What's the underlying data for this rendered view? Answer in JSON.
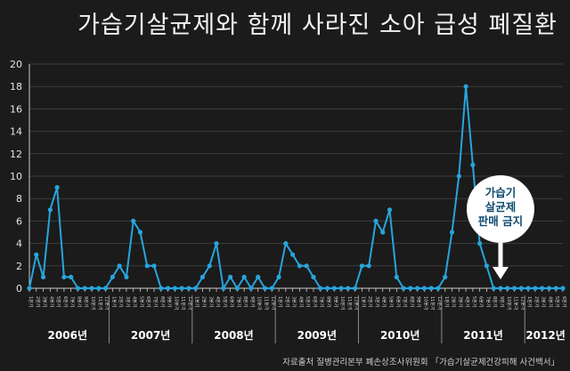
{
  "title": "가습기살균제와 함께 사라진 소아 급성 폐질환",
  "source": "자료출처 질병관리본부 폐손상조사위원회 「가습기살균제건강피해 사건백서」",
  "chart_data": {
    "type": "line",
    "title": "가습기살균제와 함께 사라진 소아 급성 폐질환",
    "ylim": [
      0,
      20
    ],
    "y_ticks": [
      0,
      2,
      4,
      6,
      8,
      10,
      12,
      14,
      16,
      18,
      20
    ],
    "grid": true,
    "x_labels": [
      "1분기",
      "2분기",
      "3분기",
      "4분기",
      "5분기",
      "6분기",
      "7분기",
      "8분기",
      "9분기",
      "10분기",
      "11분기",
      "12분기"
    ],
    "years": [
      {
        "label": "2006년",
        "months": 12
      },
      {
        "label": "2007년",
        "months": 12
      },
      {
        "label": "2008년",
        "months": 12
      },
      {
        "label": "2009년",
        "months": 12
      },
      {
        "label": "2010년",
        "months": 12
      },
      {
        "label": "2011년",
        "months": 12
      },
      {
        "label": "2012년",
        "months": 6
      }
    ],
    "values": [
      0,
      3,
      1,
      7,
      9,
      1,
      1,
      0,
      0,
      0,
      0,
      0,
      1,
      2,
      1,
      6,
      5,
      2,
      2,
      0,
      0,
      0,
      0,
      0,
      0,
      1,
      2,
      4,
      0,
      1,
      0,
      1,
      0,
      1,
      0,
      0,
      1,
      4,
      3,
      2,
      2,
      1,
      0,
      0,
      0,
      0,
      0,
      0,
      2,
      2,
      6,
      5,
      7,
      1,
      0,
      0,
      0,
      0,
      0,
      0,
      1,
      5,
      10,
      18,
      11,
      4,
      2,
      0,
      0,
      0,
      0,
      0,
      0,
      0,
      0,
      0,
      0,
      0
    ],
    "annotation": {
      "lines": [
        "가습기",
        "살균제",
        "판매 금지"
      ],
      "month_index": 68
    },
    "colors": {
      "line": "#27a5dd",
      "marker": "#27a5dd",
      "annotation_bg": "#ffffff",
      "annotation_text": "#0e4a6e",
      "grid": "#3c3c3c",
      "axis": "#cccccc"
    }
  }
}
